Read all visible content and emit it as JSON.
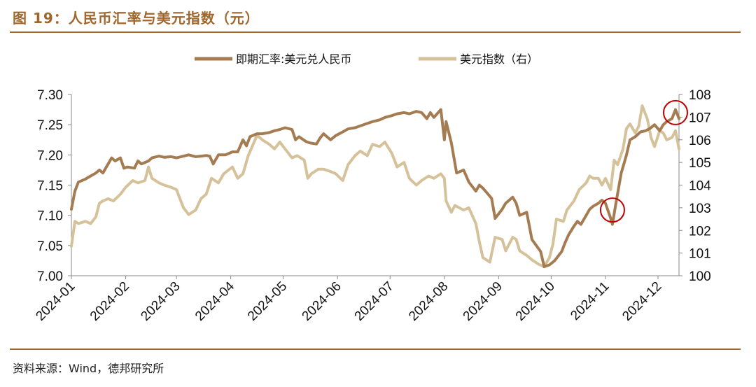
{
  "figure": {
    "title": "图 19：人民币汇率与美元指数（元）",
    "source": "资料来源：Wind，德邦研究所"
  },
  "colors": {
    "accent": "#a0672d",
    "series_rate": "#a57c52",
    "series_dxy": "#d6c29a",
    "highlight": "#c00000"
  },
  "chart_data": {
    "type": "line",
    "x_ticks": [
      "2024-01",
      "2024-02",
      "2024-03",
      "2024-04",
      "2024-05",
      "2024-06",
      "2024-07",
      "2024-08",
      "2024-09",
      "2024-10",
      "2024-11",
      "2024-12"
    ],
    "xlim": [
      "2024-01-01",
      "2024-12-13"
    ],
    "y_left": {
      "ticks": [
        "7.30",
        "7.25",
        "7.20",
        "7.15",
        "7.10",
        "7.05",
        "7.00"
      ],
      "ylim": [
        7.0,
        7.3
      ]
    },
    "y_right": {
      "ticks": [
        "108",
        "107",
        "106",
        "105",
        "104",
        "103",
        "102",
        "101",
        "100"
      ],
      "ylim": [
        100,
        108
      ]
    },
    "legend_position": "top-center",
    "grid": false,
    "annotations": [
      {
        "shape": "circle",
        "x": "2024-11-05",
        "y_right": 102.9
      },
      {
        "shape": "circle",
        "x": "2024-12-11",
        "y_right": 107.2
      }
    ],
    "series": [
      {
        "name": "即期汇率:美元兑人民币",
        "axis": "left",
        "points": [
          [
            "2024-01-01",
            7.11
          ],
          [
            "2024-01-03",
            7.14
          ],
          [
            "2024-01-05",
            7.155
          ],
          [
            "2024-01-09",
            7.16
          ],
          [
            "2024-01-12",
            7.165
          ],
          [
            "2024-01-15",
            7.17
          ],
          [
            "2024-01-17",
            7.175
          ],
          [
            "2024-01-19",
            7.17
          ],
          [
            "2024-01-22",
            7.185
          ],
          [
            "2024-01-24",
            7.195
          ],
          [
            "2024-01-26",
            7.19
          ],
          [
            "2024-01-29",
            7.195
          ],
          [
            "2024-01-31",
            7.178
          ],
          [
            "2024-02-02",
            7.18
          ],
          [
            "2024-02-06",
            7.178
          ],
          [
            "2024-02-08",
            7.19
          ],
          [
            "2024-02-10",
            7.185
          ],
          [
            "2024-02-14",
            7.19
          ],
          [
            "2024-02-16",
            7.195
          ],
          [
            "2024-02-20",
            7.198
          ],
          [
            "2024-02-23",
            7.196
          ],
          [
            "2024-02-27",
            7.197
          ],
          [
            "2024-03-01",
            7.195
          ],
          [
            "2024-03-05",
            7.198
          ],
          [
            "2024-03-08",
            7.2
          ],
          [
            "2024-03-12",
            7.197
          ],
          [
            "2024-03-15",
            7.198
          ],
          [
            "2024-03-18",
            7.199
          ],
          [
            "2024-03-20",
            7.198
          ],
          [
            "2024-03-22",
            7.185
          ],
          [
            "2024-03-25",
            7.2
          ],
          [
            "2024-03-27",
            7.2
          ],
          [
            "2024-03-29",
            7.2
          ],
          [
            "2024-04-02",
            7.205
          ],
          [
            "2024-04-05",
            7.205
          ],
          [
            "2024-04-08",
            7.225
          ],
          [
            "2024-04-10",
            7.215
          ],
          [
            "2024-04-12",
            7.23
          ],
          [
            "2024-04-16",
            7.235
          ],
          [
            "2024-04-19",
            7.235
          ],
          [
            "2024-04-23",
            7.237
          ],
          [
            "2024-04-26",
            7.24
          ],
          [
            "2024-04-29",
            7.242
          ],
          [
            "2024-05-02",
            7.245
          ],
          [
            "2024-05-06",
            7.242
          ],
          [
            "2024-05-08",
            7.225
          ],
          [
            "2024-05-10",
            7.23
          ],
          [
            "2024-05-14",
            7.222
          ],
          [
            "2024-05-16",
            7.22
          ],
          [
            "2024-05-20",
            7.218
          ],
          [
            "2024-05-22",
            7.228
          ],
          [
            "2024-05-24",
            7.235
          ],
          [
            "2024-05-28",
            7.225
          ],
          [
            "2024-05-31",
            7.232
          ],
          [
            "2024-06-04",
            7.238
          ],
          [
            "2024-06-07",
            7.243
          ],
          [
            "2024-06-11",
            7.245
          ],
          [
            "2024-06-14",
            7.248
          ],
          [
            "2024-06-18",
            7.252
          ],
          [
            "2024-06-21",
            7.255
          ],
          [
            "2024-06-25",
            7.258
          ],
          [
            "2024-06-28",
            7.262
          ],
          [
            "2024-07-02",
            7.265
          ],
          [
            "2024-07-05",
            7.268
          ],
          [
            "2024-07-09",
            7.27
          ],
          [
            "2024-07-12",
            7.268
          ],
          [
            "2024-07-16",
            7.272
          ],
          [
            "2024-07-19",
            7.27
          ],
          [
            "2024-07-22",
            7.26
          ],
          [
            "2024-07-24",
            7.27
          ],
          [
            "2024-07-26",
            7.262
          ],
          [
            "2024-07-30",
            7.275
          ],
          [
            "2024-08-01",
            7.225
          ],
          [
            "2024-08-02",
            7.255
          ],
          [
            "2024-08-05",
            7.22
          ],
          [
            "2024-08-08",
            7.17
          ],
          [
            "2024-08-12",
            7.175
          ],
          [
            "2024-08-15",
            7.155
          ],
          [
            "2024-08-19",
            7.14
          ],
          [
            "2024-08-21",
            7.15
          ],
          [
            "2024-08-23",
            7.145
          ],
          [
            "2024-08-26",
            7.135
          ],
          [
            "2024-08-28",
            7.128
          ],
          [
            "2024-08-30",
            7.095
          ],
          [
            "2024-09-03",
            7.11
          ],
          [
            "2024-09-05",
            7.12
          ],
          [
            "2024-09-09",
            7.13
          ],
          [
            "2024-09-11",
            7.12
          ],
          [
            "2024-09-13",
            7.1
          ],
          [
            "2024-09-17",
            7.105
          ],
          [
            "2024-09-20",
            7.06
          ],
          [
            "2024-09-23",
            7.048
          ],
          [
            "2024-09-25",
            7.04
          ],
          [
            "2024-09-27",
            7.015
          ],
          [
            "2024-09-30",
            7.018
          ],
          [
            "2024-10-03",
            7.025
          ],
          [
            "2024-10-07",
            7.04
          ],
          [
            "2024-10-09",
            7.055
          ],
          [
            "2024-10-11",
            7.068
          ],
          [
            "2024-10-14",
            7.082
          ],
          [
            "2024-10-16",
            7.09
          ],
          [
            "2024-10-18",
            7.085
          ],
          [
            "2024-10-21",
            7.1
          ],
          [
            "2024-10-23",
            7.11
          ],
          [
            "2024-10-25",
            7.115
          ],
          [
            "2024-10-28",
            7.12
          ],
          [
            "2024-10-30",
            7.125
          ],
          [
            "2024-11-01",
            7.12
          ],
          [
            "2024-11-04",
            7.095
          ],
          [
            "2024-11-05",
            7.085
          ],
          [
            "2024-11-07",
            7.12
          ],
          [
            "2024-11-10",
            7.17
          ],
          [
            "2024-11-13",
            7.2
          ],
          [
            "2024-11-15",
            7.225
          ],
          [
            "2024-11-18",
            7.23
          ],
          [
            "2024-11-21",
            7.238
          ],
          [
            "2024-11-24",
            7.24
          ],
          [
            "2024-11-27",
            7.245
          ],
          [
            "2024-11-29",
            7.25
          ],
          [
            "2024-12-02",
            7.24
          ],
          [
            "2024-12-04",
            7.25
          ],
          [
            "2024-12-06",
            7.255
          ],
          [
            "2024-12-09",
            7.26
          ],
          [
            "2024-12-11",
            7.275
          ],
          [
            "2024-12-13",
            7.26
          ]
        ]
      },
      {
        "name": "美元指数（右）",
        "axis": "right",
        "points": [
          [
            "2024-01-01",
            101.3
          ],
          [
            "2024-01-03",
            102.4
          ],
          [
            "2024-01-05",
            102.3
          ],
          [
            "2024-01-09",
            102.4
          ],
          [
            "2024-01-12",
            102.3
          ],
          [
            "2024-01-15",
            102.6
          ],
          [
            "2024-01-17",
            103.2
          ],
          [
            "2024-01-19",
            103.3
          ],
          [
            "2024-01-22",
            103.4
          ],
          [
            "2024-01-25",
            103.3
          ],
          [
            "2024-01-29",
            103.6
          ],
          [
            "2024-02-01",
            103.9
          ],
          [
            "2024-02-05",
            104.2
          ],
          [
            "2024-02-08",
            104.1
          ],
          [
            "2024-02-12",
            104.2
          ],
          [
            "2024-02-14",
            104.8
          ],
          [
            "2024-02-16",
            104.3
          ],
          [
            "2024-02-20",
            104.1
          ],
          [
            "2024-02-23",
            104.0
          ],
          [
            "2024-02-27",
            103.9
          ],
          [
            "2024-03-01",
            103.8
          ],
          [
            "2024-03-05",
            103.0
          ],
          [
            "2024-03-08",
            102.7
          ],
          [
            "2024-03-12",
            102.9
          ],
          [
            "2024-03-15",
            103.4
          ],
          [
            "2024-03-18",
            103.6
          ],
          [
            "2024-03-21",
            104.3
          ],
          [
            "2024-03-25",
            104.1
          ],
          [
            "2024-03-28",
            104.5
          ],
          [
            "2024-04-02",
            104.8
          ],
          [
            "2024-04-05",
            104.3
          ],
          [
            "2024-04-08",
            104.5
          ],
          [
            "2024-04-11",
            105.3
          ],
          [
            "2024-04-16",
            106.2
          ],
          [
            "2024-04-19",
            106.0
          ],
          [
            "2024-04-23",
            105.8
          ],
          [
            "2024-04-26",
            105.6
          ],
          [
            "2024-04-29",
            105.9
          ],
          [
            "2024-05-02",
            105.6
          ],
          [
            "2024-05-06",
            105.2
          ],
          [
            "2024-05-09",
            105.3
          ],
          [
            "2024-05-13",
            105.1
          ],
          [
            "2024-05-15",
            104.3
          ],
          [
            "2024-05-17",
            104.5
          ],
          [
            "2024-05-21",
            104.7
          ],
          [
            "2024-05-24",
            104.7
          ],
          [
            "2024-05-28",
            104.6
          ],
          [
            "2024-05-31",
            104.5
          ],
          [
            "2024-06-04",
            104.2
          ],
          [
            "2024-06-07",
            104.9
          ],
          [
            "2024-06-11",
            105.3
          ],
          [
            "2024-06-14",
            105.5
          ],
          [
            "2024-06-18",
            105.3
          ],
          [
            "2024-06-21",
            105.8
          ],
          [
            "2024-06-25",
            105.7
          ],
          [
            "2024-06-28",
            105.9
          ],
          [
            "2024-07-02",
            105.4
          ],
          [
            "2024-07-05",
            104.8
          ],
          [
            "2024-07-09",
            105.0
          ],
          [
            "2024-07-12",
            104.3
          ],
          [
            "2024-07-16",
            104.0
          ],
          [
            "2024-07-19",
            104.2
          ],
          [
            "2024-07-23",
            104.4
          ],
          [
            "2024-07-26",
            104.3
          ],
          [
            "2024-07-30",
            104.5
          ],
          [
            "2024-08-01",
            104.3
          ],
          [
            "2024-08-02",
            103.3
          ],
          [
            "2024-08-05",
            102.8
          ],
          [
            "2024-08-07",
            103.1
          ],
          [
            "2024-08-12",
            102.9
          ],
          [
            "2024-08-15",
            103.0
          ],
          [
            "2024-08-19",
            102.3
          ],
          [
            "2024-08-21",
            101.5
          ],
          [
            "2024-08-23",
            100.8
          ],
          [
            "2024-08-27",
            100.6
          ],
          [
            "2024-08-30",
            101.7
          ],
          [
            "2024-09-03",
            101.6
          ],
          [
            "2024-09-05",
            101.1
          ],
          [
            "2024-09-09",
            101.7
          ],
          [
            "2024-09-11",
            101.6
          ],
          [
            "2024-09-13",
            101.1
          ],
          [
            "2024-09-17",
            100.9
          ],
          [
            "2024-09-20",
            100.7
          ],
          [
            "2024-09-24",
            100.5
          ],
          [
            "2024-09-27",
            100.4
          ],
          [
            "2024-09-30",
            100.8
          ],
          [
            "2024-10-02",
            101.4
          ],
          [
            "2024-10-04",
            102.5
          ],
          [
            "2024-10-08",
            102.4
          ],
          [
            "2024-10-10",
            102.9
          ],
          [
            "2024-10-14",
            103.3
          ],
          [
            "2024-10-17",
            103.8
          ],
          [
            "2024-10-21",
            104.1
          ],
          [
            "2024-10-23",
            104.4
          ],
          [
            "2024-10-25",
            104.3
          ],
          [
            "2024-10-28",
            104.3
          ],
          [
            "2024-10-30",
            104.0
          ],
          [
            "2024-11-01",
            104.3
          ],
          [
            "2024-11-04",
            103.8
          ],
          [
            "2024-11-06",
            105.1
          ],
          [
            "2024-11-08",
            104.9
          ],
          [
            "2024-11-11",
            105.6
          ],
          [
            "2024-11-13",
            106.5
          ],
          [
            "2024-11-15",
            106.7
          ],
          [
            "2024-11-18",
            106.3
          ],
          [
            "2024-11-20",
            106.6
          ],
          [
            "2024-11-22",
            107.5
          ],
          [
            "2024-11-25",
            106.9
          ],
          [
            "2024-11-27",
            106.1
          ],
          [
            "2024-11-29",
            105.7
          ],
          [
            "2024-12-02",
            106.4
          ],
          [
            "2024-12-04",
            106.3
          ],
          [
            "2024-12-06",
            106.0
          ],
          [
            "2024-12-09",
            106.1
          ],
          [
            "2024-12-11",
            106.4
          ],
          [
            "2024-12-13",
            105.6
          ]
        ]
      }
    ]
  }
}
